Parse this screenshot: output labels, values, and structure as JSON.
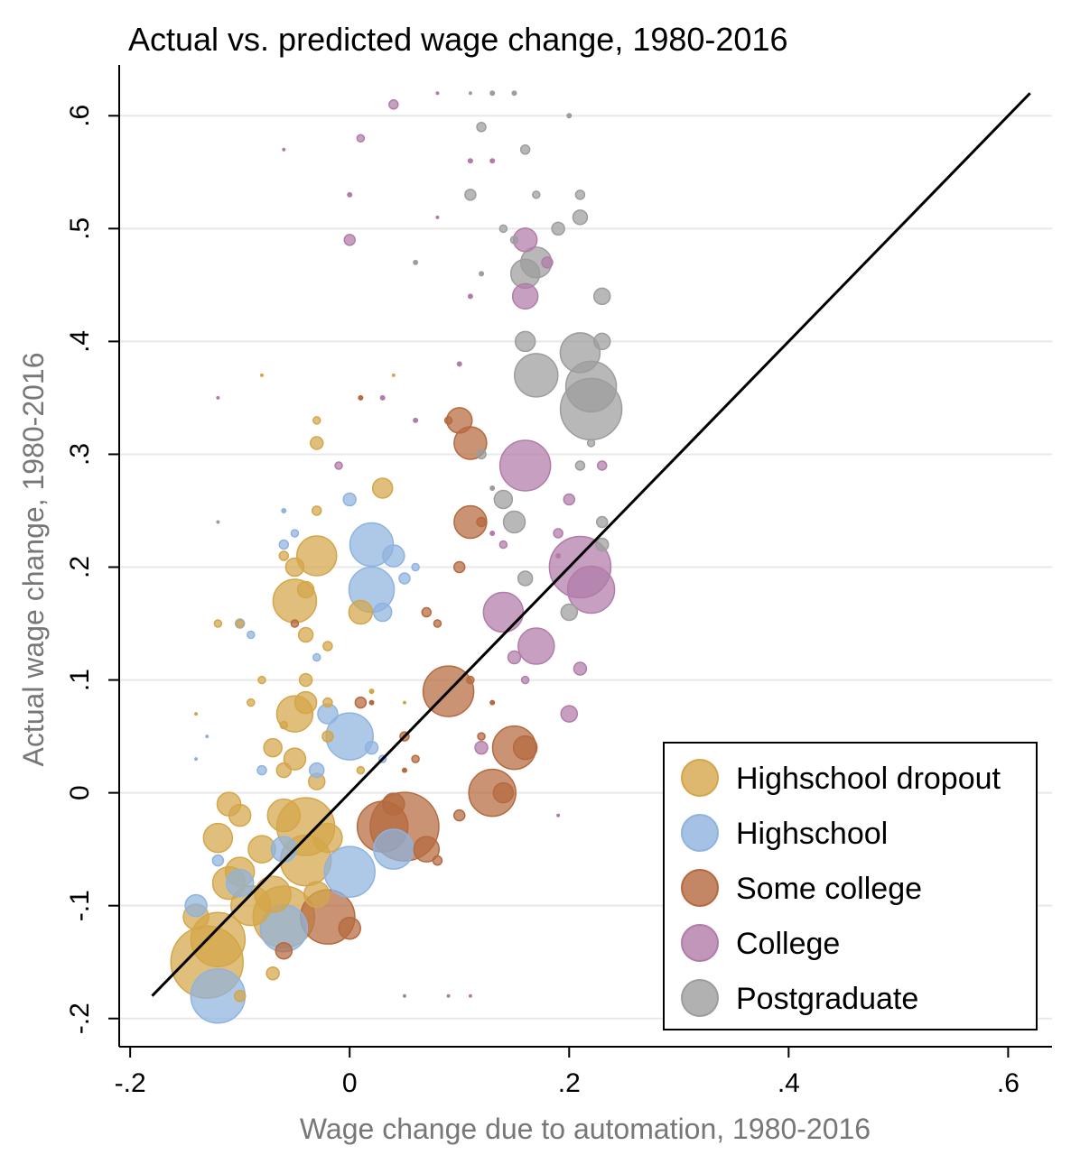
{
  "chart_data": {
    "type": "scatter",
    "title": "Actual vs. predicted wage change, 1980-2016",
    "xlabel": "Wage change due to automation, 1980-2016",
    "ylabel": "Actual wage change, 1980-2016",
    "xlim": [
      -0.21,
      0.64
    ],
    "ylim": [
      -0.225,
      0.645
    ],
    "xticks": [
      {
        "v": -0.2,
        "label": "-.2"
      },
      {
        "v": 0,
        "label": "0"
      },
      {
        "v": 0.2,
        "label": ".2"
      },
      {
        "v": 0.4,
        "label": ".4"
      },
      {
        "v": 0.6,
        "label": ".6"
      }
    ],
    "yticks": [
      {
        "v": -0.2,
        "label": "-.2"
      },
      {
        "v": -0.1,
        "label": "-.1"
      },
      {
        "v": 0,
        "label": "0"
      },
      {
        "v": 0.1,
        "label": ".1"
      },
      {
        "v": 0.2,
        "label": ".2"
      },
      {
        "v": 0.3,
        "label": ".3"
      },
      {
        "v": 0.4,
        "label": ".4"
      },
      {
        "v": 0.5,
        "label": ".5"
      },
      {
        "v": 0.6,
        "label": ".6"
      }
    ],
    "grid": "horizontal",
    "legend_position": "bottom-right",
    "reference_line": {
      "x": [
        -0.18,
        0.62
      ],
      "y": [
        -0.18,
        0.62
      ]
    },
    "series": [
      {
        "name": "Highschool dropout",
        "color": "#d4a64a",
        "points": [
          [
            -0.13,
            -0.15,
            40
          ],
          [
            -0.12,
            -0.13,
            30
          ],
          [
            -0.06,
            -0.11,
            34
          ],
          [
            -0.04,
            -0.06,
            28
          ],
          [
            -0.04,
            -0.03,
            32
          ],
          [
            -0.05,
            0.07,
            20
          ],
          [
            -0.05,
            0.17,
            24
          ],
          [
            -0.03,
            0.21,
            22
          ],
          [
            -0.1,
            -0.07,
            16
          ],
          [
            -0.11,
            -0.08,
            18
          ],
          [
            -0.14,
            -0.11,
            14
          ],
          [
            -0.09,
            -0.1,
            22
          ],
          [
            -0.08,
            -0.05,
            15
          ],
          [
            -0.12,
            -0.04,
            16
          ],
          [
            -0.11,
            -0.01,
            13
          ],
          [
            -0.1,
            -0.02,
            12
          ],
          [
            -0.07,
            -0.09,
            20
          ],
          [
            -0.06,
            -0.02,
            18
          ],
          [
            -0.02,
            -0.04,
            16
          ],
          [
            -0.03,
            -0.09,
            14
          ],
          [
            -0.07,
            0.04,
            10
          ],
          [
            -0.05,
            0.03,
            12
          ],
          [
            -0.04,
            0.08,
            12
          ],
          [
            -0.03,
            0.01,
            9
          ],
          [
            -0.06,
            0.02,
            8
          ],
          [
            -0.04,
            0.14,
            8
          ],
          [
            0.01,
            0.16,
            13
          ],
          [
            -0.05,
            0.2,
            10
          ],
          [
            0.03,
            0.27,
            11
          ],
          [
            -0.04,
            0.18,
            9
          ],
          [
            -0.03,
            0.31,
            7
          ],
          [
            -0.04,
            0.1,
            7
          ],
          [
            -0.02,
            0.05,
            6
          ],
          [
            -0.02,
            0.08,
            5
          ],
          [
            -0.03,
            0.25,
            5
          ],
          [
            -0.06,
            0.21,
            5
          ],
          [
            -0.08,
            0.1,
            4
          ],
          [
            -0.09,
            0.08,
            4
          ],
          [
            -0.1,
            0.15,
            4
          ],
          [
            -0.07,
            -0.16,
            7
          ],
          [
            -0.1,
            -0.18,
            6
          ],
          [
            -0.12,
            0.15,
            4
          ],
          [
            -0.03,
            0.33,
            4
          ],
          [
            -0.02,
            0.13,
            5
          ],
          [
            -0.06,
            0.06,
            4
          ],
          [
            0.01,
            0.02,
            4
          ],
          [
            0.02,
            0.09,
            3
          ],
          [
            0.04,
            0.37,
            2
          ],
          [
            -0.08,
            0.37,
            2
          ],
          [
            -0.14,
            0.07,
            2
          ],
          [
            0.05,
            0.08,
            2
          ]
        ]
      },
      {
        "name": "Highschool",
        "color": "#8fb3df",
        "points": [
          [
            -0.12,
            -0.18,
            30
          ],
          [
            0.0,
            0.05,
            26
          ],
          [
            0.02,
            0.18,
            25
          ],
          [
            0.02,
            0.22,
            24
          ],
          [
            0.0,
            -0.07,
            28
          ],
          [
            0.04,
            -0.05,
            22
          ],
          [
            -0.06,
            -0.12,
            26
          ],
          [
            -0.1,
            -0.08,
            15
          ],
          [
            -0.14,
            -0.1,
            12
          ],
          [
            -0.02,
            0.07,
            11
          ],
          [
            0.03,
            0.16,
            10
          ],
          [
            0.04,
            0.21,
            12
          ],
          [
            -0.06,
            -0.05,
            14
          ],
          [
            0.0,
            0.26,
            7
          ],
          [
            0.05,
            0.19,
            6
          ],
          [
            -0.03,
            0.02,
            8
          ],
          [
            0.02,
            0.04,
            7
          ],
          [
            -0.1,
            0.15,
            5
          ],
          [
            -0.06,
            0.22,
            5
          ],
          [
            -0.05,
            0.23,
            4
          ],
          [
            -0.08,
            0.02,
            5
          ],
          [
            -0.12,
            -0.06,
            6
          ],
          [
            0.03,
            0.03,
            4
          ],
          [
            -0.09,
            0.14,
            4
          ],
          [
            -0.03,
            0.12,
            4
          ],
          [
            0.06,
            0.2,
            4
          ],
          [
            -0.14,
            0.03,
            2
          ],
          [
            -0.13,
            0.05,
            2
          ],
          [
            -0.06,
            0.25,
            3
          ]
        ]
      },
      {
        "name": "Some college",
        "color": "#b5693f",
        "points": [
          [
            0.05,
            -0.03,
            38
          ],
          [
            0.03,
            -0.03,
            28
          ],
          [
            0.09,
            0.09,
            28
          ],
          [
            0.13,
            0.0,
            26
          ],
          [
            -0.02,
            -0.11,
            30
          ],
          [
            0.15,
            0.04,
            24
          ],
          [
            0.11,
            0.24,
            18
          ],
          [
            0.11,
            0.31,
            18
          ],
          [
            0.1,
            0.33,
            14
          ],
          [
            0.07,
            -0.05,
            14
          ],
          [
            0.04,
            -0.01,
            12
          ],
          [
            0.0,
            -0.12,
            12
          ],
          [
            0.14,
            0.0,
            11
          ],
          [
            0.16,
            0.04,
            13
          ],
          [
            0.01,
            0.08,
            6
          ],
          [
            0.1,
            0.2,
            6
          ],
          [
            0.12,
            0.24,
            5
          ],
          [
            0.07,
            0.16,
            5
          ],
          [
            0.08,
            0.15,
            4
          ],
          [
            0.09,
            0.33,
            4
          ],
          [
            0.11,
            0.1,
            4
          ],
          [
            0.12,
            0.05,
            4
          ],
          [
            0.05,
            0.05,
            5
          ],
          [
            0.06,
            0.03,
            4
          ],
          [
            0.13,
            0.08,
            3
          ],
          [
            0.08,
            -0.06,
            5
          ],
          [
            -0.06,
            -0.14,
            9
          ],
          [
            0.02,
            0.08,
            3
          ],
          [
            0.05,
            0.02,
            3
          ],
          [
            0.1,
            -0.02,
            6
          ],
          [
            -0.05,
            0.15,
            4
          ],
          [
            0.01,
            0.35,
            3
          ]
        ]
      },
      {
        "name": "College",
        "color": "#b27ca9",
        "points": [
          [
            0.21,
            0.2,
            34
          ],
          [
            0.22,
            0.18,
            26
          ],
          [
            0.16,
            0.29,
            28
          ],
          [
            0.14,
            0.16,
            22
          ],
          [
            0.17,
            0.13,
            20
          ],
          [
            0.16,
            0.49,
            13
          ],
          [
            0.16,
            0.44,
            14
          ],
          [
            0.2,
            0.07,
            9
          ],
          [
            0.21,
            0.11,
            7
          ],
          [
            0.2,
            0.26,
            6
          ],
          [
            0.23,
            0.29,
            5
          ],
          [
            0.19,
            0.23,
            5
          ],
          [
            0.15,
            0.12,
            7
          ],
          [
            0.14,
            0.22,
            4
          ],
          [
            0.12,
            0.04,
            7
          ],
          [
            0.18,
            0.47,
            6
          ],
          [
            0.04,
            0.61,
            5
          ],
          [
            0.0,
            0.49,
            6
          ],
          [
            0.01,
            0.58,
            4
          ],
          [
            0.16,
            0.1,
            4
          ],
          [
            0.13,
            0.23,
            3
          ],
          [
            0.1,
            0.38,
            3
          ],
          [
            0.06,
            0.33,
            3
          ],
          [
            0.03,
            0.35,
            3
          ],
          [
            -0.01,
            0.29,
            4
          ],
          [
            0.11,
            0.56,
            3
          ],
          [
            0.13,
            0.56,
            3
          ],
          [
            0.11,
            0.44,
            3
          ],
          [
            0.19,
            0.21,
            3
          ],
          [
            0.0,
            0.53,
            3
          ],
          [
            0.05,
            -0.18,
            2
          ],
          [
            0.09,
            -0.18,
            2
          ],
          [
            0.11,
            -0.18,
            2
          ],
          [
            0.19,
            -0.02,
            2
          ],
          [
            -0.06,
            0.57,
            2
          ],
          [
            -0.12,
            0.35,
            2
          ],
          [
            0.08,
            0.51,
            2
          ],
          [
            0.08,
            0.62,
            2
          ]
        ]
      },
      {
        "name": "Postgraduate",
        "color": "#9d9d9d",
        "points": [
          [
            0.22,
            0.34,
            34
          ],
          [
            0.22,
            0.36,
            28
          ],
          [
            0.21,
            0.39,
            22
          ],
          [
            0.17,
            0.37,
            24
          ],
          [
            0.16,
            0.46,
            16
          ],
          [
            0.17,
            0.47,
            17
          ],
          [
            0.16,
            0.4,
            11
          ],
          [
            0.15,
            0.24,
            12
          ],
          [
            0.14,
            0.26,
            10
          ],
          [
            0.2,
            0.16,
            9
          ],
          [
            0.16,
            0.19,
            8
          ],
          [
            0.23,
            0.4,
            9
          ],
          [
            0.23,
            0.44,
            9
          ],
          [
            0.21,
            0.51,
            8
          ],
          [
            0.19,
            0.5,
            7
          ],
          [
            0.23,
            0.22,
            7
          ],
          [
            0.23,
            0.24,
            6
          ],
          [
            0.16,
            0.57,
            5
          ],
          [
            0.21,
            0.53,
            5
          ],
          [
            0.12,
            0.59,
            5
          ],
          [
            0.12,
            0.3,
            5
          ],
          [
            0.11,
            0.53,
            6
          ],
          [
            0.14,
            0.5,
            4
          ],
          [
            0.15,
            0.49,
            4
          ],
          [
            0.17,
            0.53,
            4
          ],
          [
            0.2,
            0.6,
            3
          ],
          [
            0.13,
            0.62,
            3
          ],
          [
            0.15,
            0.62,
            3
          ],
          [
            0.11,
            0.62,
            2
          ],
          [
            0.06,
            0.47,
            3
          ],
          [
            0.13,
            0.27,
            3
          ],
          [
            0.12,
            0.46,
            3
          ],
          [
            -0.12,
            0.24,
            2
          ],
          [
            0.21,
            0.29,
            5
          ],
          [
            0.22,
            0.31,
            4
          ]
        ]
      }
    ]
  }
}
